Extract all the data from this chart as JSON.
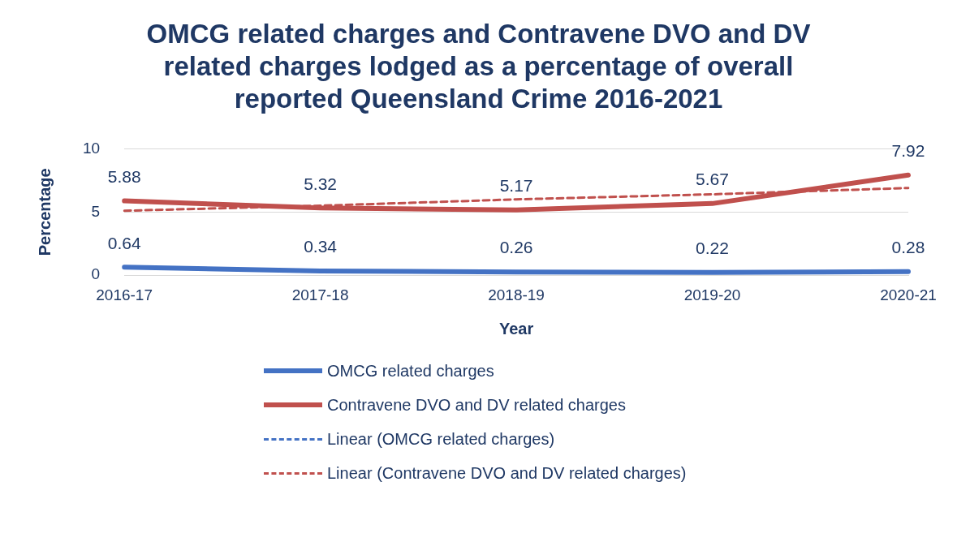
{
  "chart_data": {
    "type": "line",
    "title": "OMCG related charges and Contravene DVO and DV related  charges lodged as a percentage of overall reported Queensland Crime 2016-2021",
    "xlabel": "Year",
    "ylabel": "Percentage",
    "categories": [
      "2016-17",
      "2017-18",
      "2018-19",
      "2019-20",
      "2020-21"
    ],
    "series": [
      {
        "name": "OMCG related charges",
        "color": "#4472c4",
        "values": [
          0.64,
          0.34,
          0.26,
          0.22,
          0.28
        ],
        "value_labels": [
          "0.64",
          "0.34",
          "0.26",
          "0.22",
          "0.28"
        ],
        "line_style": "solid"
      },
      {
        "name": "Contravene DVO and DV related charges",
        "color": "#c0504d",
        "values": [
          5.88,
          5.32,
          5.17,
          5.67,
          7.92
        ],
        "value_labels": [
          "5.88",
          "5.32",
          "5.17",
          "5.67",
          "7.92"
        ],
        "line_style": "solid"
      },
      {
        "name": "Linear (OMCG related charges)",
        "color": "#4472c4",
        "values": [
          null,
          null,
          null,
          null,
          null
        ],
        "line_style": "dashed"
      },
      {
        "name": "Linear (Contravene DVO and DV related charges)",
        "color": "#c0504d",
        "values": [
          5.1,
          5.5,
          6.0,
          6.4,
          6.9
        ],
        "line_style": "dashed"
      }
    ],
    "ylim": [
      0,
      10
    ],
    "yticks": [
      0,
      5,
      10
    ],
    "grid": "y",
    "legend": "bottom",
    "marker": "none"
  }
}
